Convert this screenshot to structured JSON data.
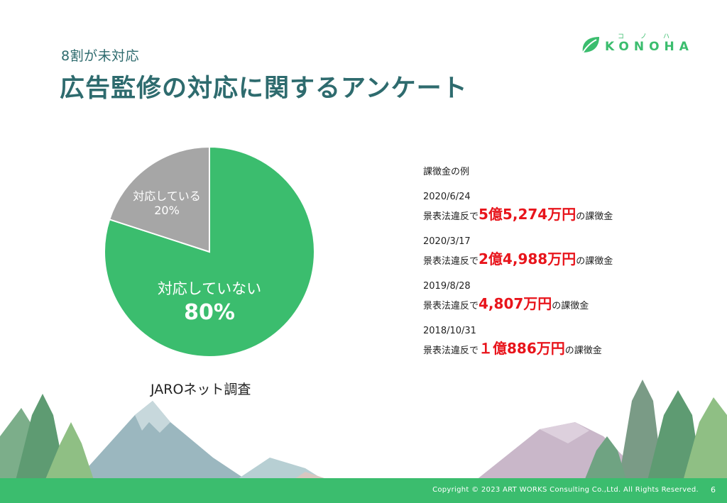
{
  "header": {
    "subtitle": "8割が未対応",
    "title": "広告監修の対応に関するアンケート"
  },
  "logo": {
    "text": "KONOHA",
    "ruby": [
      "コ",
      "ノ",
      "ハ"
    ]
  },
  "chart_data": {
    "type": "pie",
    "slices": [
      {
        "label": "対応していない",
        "value": 80,
        "value_text": "80%",
        "color": "#3bbd6e"
      },
      {
        "label": "対応している",
        "value": 20,
        "value_text": "20%",
        "color": "#a6a6a6"
      }
    ]
  },
  "survey_source": "JAROネット調査",
  "fines": {
    "heading": "課徴金の例",
    "cases": [
      {
        "date": "2020/6/24",
        "prefix": "景表法違反で",
        "amount": "5億5,274万円",
        "suffix": "の課徴金"
      },
      {
        "date": "2020/3/17",
        "prefix": "景表法違反で",
        "amount": "2億4,988万円",
        "suffix": "の課徴金"
      },
      {
        "date": "2019/8/28",
        "prefix": "景表法違反で",
        "amount": "4,807万円",
        "suffix": "の課徴金"
      },
      {
        "date": "2018/10/31",
        "prefix": "景表法違反で",
        "amount": "１億886万円",
        "suffix": "の課徴金"
      }
    ]
  },
  "footer": {
    "copyright": "Copyright © 2023 ART WORKS Consulting Co.,Ltd. All Rights Reserved.",
    "page_number": "6"
  },
  "colors": {
    "brand_green": "#3bbd6e",
    "title_teal": "#2e6b6e",
    "fine_red": "#e8141b",
    "pie_gray": "#a6a6a6"
  }
}
